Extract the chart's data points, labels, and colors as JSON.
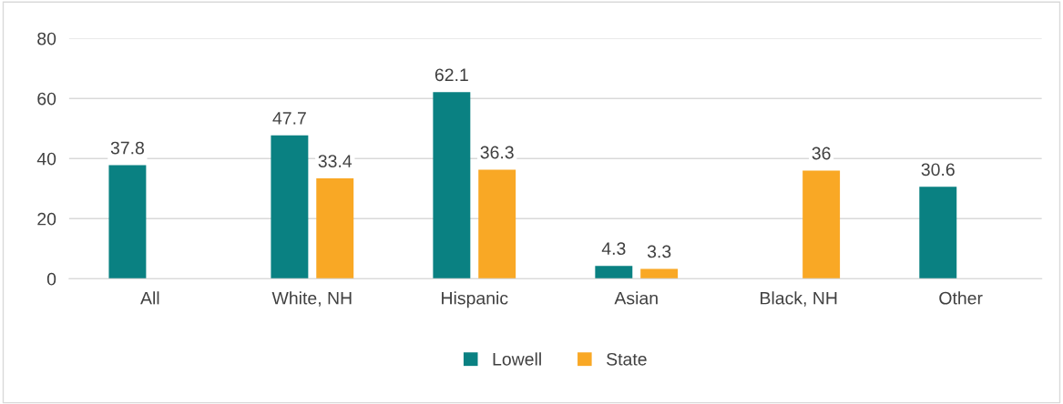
{
  "chart_data": {
    "type": "bar",
    "categories": [
      "All",
      "White, NH",
      "Hispanic",
      "Asian",
      "Black, NH",
      "Other"
    ],
    "series": [
      {
        "name": "Lowell",
        "color": "#0a8182",
        "values": [
          37.8,
          47.7,
          62.1,
          4.3,
          null,
          30.6
        ]
      },
      {
        "name": "State",
        "color": "#f9a825",
        "values": [
          null,
          33.4,
          36.3,
          3.3,
          36,
          null
        ]
      }
    ],
    "ylim": [
      0,
      80
    ],
    "yticks": [
      0,
      20,
      40,
      60,
      80
    ],
    "grid": "y",
    "legend": "bottom",
    "data_labels": true
  }
}
